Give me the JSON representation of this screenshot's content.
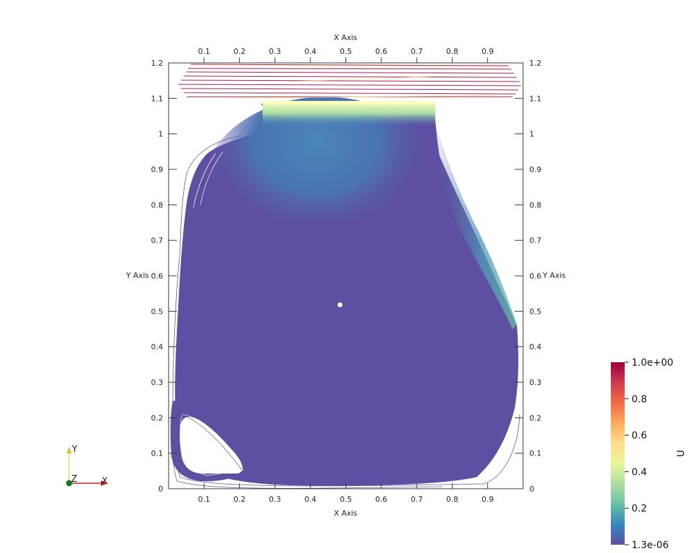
{
  "chart_data": {
    "type": "contour",
    "title": "",
    "x_axis": {
      "label": "X Axis",
      "range": [
        0,
        1
      ],
      "ticks": [
        "0.1",
        "0.2",
        "0.3",
        "0.4",
        "0.5",
        "0.6",
        "0.7",
        "0.8",
        "0.9"
      ]
    },
    "y_axis": {
      "label": "Y Axis",
      "range": [
        0,
        1.2
      ],
      "ticks": [
        "0",
        "0.1",
        "0.2",
        "0.3",
        "0.4",
        "0.5",
        "0.6",
        "0.7",
        "0.8",
        "0.9",
        "1",
        "1.1",
        "1.2"
      ]
    },
    "scalar_field": "U",
    "colorbar": {
      "title": "U",
      "min_label": "1.3e-06",
      "max_label": "1.0e+00",
      "tick_labels": [
        "0.2",
        "0.4",
        "0.6",
        "0.8"
      ],
      "colors": [
        "#5e4fa2",
        "#3288bd",
        "#66c2a5",
        "#abdda4",
        "#e6f598",
        "#fee08b",
        "#fdae61",
        "#f46d43",
        "#d53e4f",
        "#9e0142"
      ]
    },
    "orientation_axes": {
      "x": "X",
      "y": "Y",
      "z": "Z"
    }
  }
}
